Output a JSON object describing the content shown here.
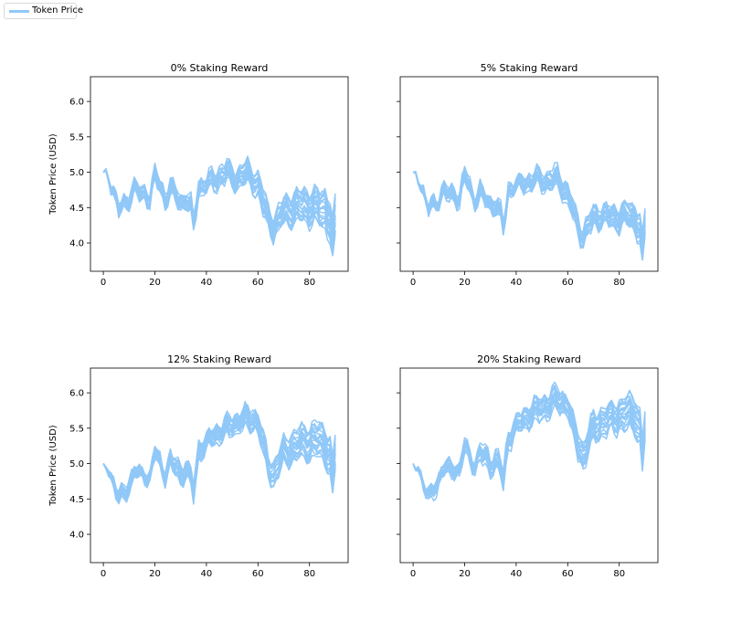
{
  "legend": {
    "label": "Token Price",
    "color": "#90c8f8"
  },
  "chart_data": [
    {
      "type": "line",
      "title": "0% Staking Reward",
      "ylabel": "Token Price (USD)",
      "xlabel": "",
      "xlim": [
        -5,
        95
      ],
      "ylim": [
        3.6,
        6.35
      ],
      "xticks": [
        0,
        20,
        40,
        60,
        80
      ],
      "yticks": [
        4.0,
        4.5,
        5.0,
        5.5,
        6.0
      ],
      "ytick_labels": [
        "4.0",
        "4.5",
        "5.0",
        "5.5",
        "6.0"
      ],
      "show_ytick_labels": true,
      "series_count": 20,
      "steps": 91,
      "mean_anchors": [
        [
          0,
          5.0
        ],
        [
          2,
          4.95
        ],
        [
          4,
          4.72
        ],
        [
          6,
          4.45
        ],
        [
          8,
          4.55
        ],
        [
          10,
          4.62
        ],
        [
          12,
          4.75
        ],
        [
          14,
          4.68
        ],
        [
          16,
          4.72
        ],
        [
          18,
          4.62
        ],
        [
          20,
          4.95
        ],
        [
          22,
          4.82
        ],
        [
          24,
          4.62
        ],
        [
          26,
          4.75
        ],
        [
          28,
          4.68
        ],
        [
          30,
          4.58
        ],
        [
          32,
          4.62
        ],
        [
          34,
          4.48
        ],
        [
          35,
          4.25
        ],
        [
          37,
          4.78
        ],
        [
          40,
          4.82
        ],
        [
          44,
          4.92
        ],
        [
          48,
          5.0
        ],
        [
          52,
          4.9
        ],
        [
          56,
          4.98
        ],
        [
          60,
          4.82
        ],
        [
          62,
          4.55
        ],
        [
          64,
          4.35
        ],
        [
          66,
          4.2
        ],
        [
          68,
          4.3
        ],
        [
          70,
          4.45
        ],
        [
          74,
          4.5
        ],
        [
          78,
          4.55
        ],
        [
          82,
          4.5
        ],
        [
          86,
          4.48
        ],
        [
          88,
          4.32
        ],
        [
          89,
          4.0
        ],
        [
          90,
          4.3
        ]
      ],
      "spread_anchors": [
        [
          0,
          0.0
        ],
        [
          2,
          0.01
        ],
        [
          6,
          0.05
        ],
        [
          20,
          0.07
        ],
        [
          36,
          0.09
        ],
        [
          50,
          0.12
        ],
        [
          62,
          0.14
        ],
        [
          66,
          0.15
        ],
        [
          70,
          0.18
        ],
        [
          80,
          0.22
        ],
        [
          90,
          0.28
        ]
      ]
    },
    {
      "type": "line",
      "title": "5% Staking Reward",
      "ylabel": "",
      "xlabel": "",
      "xlim": [
        -5,
        95
      ],
      "ylim": [
        3.6,
        6.35
      ],
      "xticks": [
        0,
        20,
        40,
        60,
        80
      ],
      "yticks": [
        4.0,
        4.5,
        5.0,
        5.5,
        6.0
      ],
      "ytick_labels": [
        "4.0",
        "4.5",
        "5.0",
        "5.5",
        "6.0"
      ],
      "show_ytick_labels": false,
      "series_count": 20,
      "steps": 91,
      "mean_anchors": [
        [
          0,
          5.0
        ],
        [
          2,
          4.95
        ],
        [
          4,
          4.72
        ],
        [
          6,
          4.45
        ],
        [
          8,
          4.55
        ],
        [
          10,
          4.62
        ],
        [
          12,
          4.72
        ],
        [
          14,
          4.66
        ],
        [
          16,
          4.7
        ],
        [
          18,
          4.6
        ],
        [
          20,
          4.95
        ],
        [
          22,
          4.8
        ],
        [
          24,
          4.6
        ],
        [
          26,
          4.7
        ],
        [
          28,
          4.62
        ],
        [
          30,
          4.55
        ],
        [
          32,
          4.55
        ],
        [
          34,
          4.4
        ],
        [
          35,
          4.2
        ],
        [
          37,
          4.75
        ],
        [
          40,
          4.8
        ],
        [
          44,
          4.85
        ],
        [
          48,
          4.9
        ],
        [
          52,
          4.85
        ],
        [
          56,
          4.9
        ],
        [
          60,
          4.7
        ],
        [
          62,
          4.45
        ],
        [
          64,
          4.25
        ],
        [
          66,
          4.1
        ],
        [
          68,
          4.25
        ],
        [
          70,
          4.35
        ],
        [
          74,
          4.38
        ],
        [
          78,
          4.35
        ],
        [
          82,
          4.38
        ],
        [
          86,
          4.35
        ],
        [
          88,
          4.2
        ],
        [
          89,
          3.85
        ],
        [
          90,
          4.25
        ]
      ],
      "spread_anchors": [
        [
          0,
          0.0
        ],
        [
          2,
          0.01
        ],
        [
          6,
          0.05
        ],
        [
          20,
          0.06
        ],
        [
          36,
          0.08
        ],
        [
          50,
          0.1
        ],
        [
          62,
          0.11
        ],
        [
          66,
          0.12
        ],
        [
          70,
          0.13
        ],
        [
          80,
          0.14
        ],
        [
          90,
          0.18
        ]
      ]
    },
    {
      "type": "line",
      "title": "12% Staking Reward",
      "ylabel": "Token Price (USD)",
      "xlabel": "",
      "xlim": [
        -5,
        95
      ],
      "ylim": [
        3.6,
        6.35
      ],
      "xticks": [
        0,
        20,
        40,
        60,
        80
      ],
      "yticks": [
        4.0,
        4.5,
        5.0,
        5.5,
        6.0
      ],
      "ytick_labels": [
        "4.0",
        "4.5",
        "5.0",
        "5.5",
        "6.0"
      ],
      "show_ytick_labels": true,
      "series_count": 20,
      "steps": 91,
      "mean_anchors": [
        [
          0,
          5.0
        ],
        [
          2,
          4.95
        ],
        [
          4,
          4.72
        ],
        [
          6,
          4.5
        ],
        [
          8,
          4.6
        ],
        [
          10,
          4.72
        ],
        [
          12,
          4.88
        ],
        [
          14,
          4.82
        ],
        [
          16,
          4.86
        ],
        [
          18,
          4.78
        ],
        [
          20,
          5.15
        ],
        [
          22,
          5.0
        ],
        [
          24,
          4.85
        ],
        [
          26,
          5.0
        ],
        [
          28,
          4.95
        ],
        [
          30,
          4.85
        ],
        [
          32,
          4.92
        ],
        [
          34,
          4.8
        ],
        [
          35,
          4.6
        ],
        [
          37,
          5.2
        ],
        [
          40,
          5.3
        ],
        [
          44,
          5.42
        ],
        [
          48,
          5.5
        ],
        [
          52,
          5.6
        ],
        [
          56,
          5.65
        ],
        [
          60,
          5.58
        ],
        [
          62,
          5.25
        ],
        [
          64,
          5.0
        ],
        [
          66,
          4.85
        ],
        [
          68,
          5.0
        ],
        [
          70,
          5.15
        ],
        [
          74,
          5.22
        ],
        [
          78,
          5.3
        ],
        [
          82,
          5.32
        ],
        [
          86,
          5.3
        ],
        [
          88,
          5.1
        ],
        [
          89,
          4.75
        ],
        [
          90,
          5.15
        ]
      ],
      "spread_anchors": [
        [
          0,
          0.0
        ],
        [
          2,
          0.01
        ],
        [
          6,
          0.05
        ],
        [
          20,
          0.07
        ],
        [
          36,
          0.09
        ],
        [
          50,
          0.12
        ],
        [
          62,
          0.14
        ],
        [
          66,
          0.15
        ],
        [
          70,
          0.17
        ],
        [
          80,
          0.2
        ],
        [
          90,
          0.25
        ]
      ]
    },
    {
      "type": "line",
      "title": "20% Staking Reward",
      "ylabel": "",
      "xlabel": "",
      "xlim": [
        -5,
        95
      ],
      "ylim": [
        3.6,
        6.35
      ],
      "xticks": [
        0,
        20,
        40,
        60,
        80
      ],
      "yticks": [
        4.0,
        4.5,
        5.0,
        5.5,
        6.0
      ],
      "ytick_labels": [
        "4.0",
        "4.5",
        "5.0",
        "5.5",
        "6.0"
      ],
      "show_ytick_labels": false,
      "series_count": 20,
      "steps": 91,
      "mean_anchors": [
        [
          0,
          5.0
        ],
        [
          2,
          4.95
        ],
        [
          4,
          4.72
        ],
        [
          6,
          4.5
        ],
        [
          8,
          4.65
        ],
        [
          10,
          4.8
        ],
        [
          12,
          4.95
        ],
        [
          14,
          4.9
        ],
        [
          16,
          4.95
        ],
        [
          18,
          4.9
        ],
        [
          20,
          5.25
        ],
        [
          22,
          5.1
        ],
        [
          24,
          5.0
        ],
        [
          26,
          5.15
        ],
        [
          28,
          5.1
        ],
        [
          30,
          5.0
        ],
        [
          32,
          5.05
        ],
        [
          34,
          4.95
        ],
        [
          35,
          4.75
        ],
        [
          37,
          5.4
        ],
        [
          40,
          5.5
        ],
        [
          44,
          5.65
        ],
        [
          48,
          5.75
        ],
        [
          52,
          5.85
        ],
        [
          56,
          5.9
        ],
        [
          60,
          5.85
        ],
        [
          62,
          5.5
        ],
        [
          64,
          5.25
        ],
        [
          66,
          5.1
        ],
        [
          68,
          5.3
        ],
        [
          70,
          5.5
        ],
        [
          74,
          5.6
        ],
        [
          78,
          5.65
        ],
        [
          82,
          5.7
        ],
        [
          86,
          5.72
        ],
        [
          88,
          5.5
        ],
        [
          89,
          5.1
        ],
        [
          90,
          5.55
        ]
      ],
      "spread_anchors": [
        [
          0,
          0.0
        ],
        [
          2,
          0.01
        ],
        [
          6,
          0.05
        ],
        [
          20,
          0.08
        ],
        [
          36,
          0.11
        ],
        [
          50,
          0.14
        ],
        [
          62,
          0.16
        ],
        [
          66,
          0.17
        ],
        [
          70,
          0.18
        ],
        [
          80,
          0.2
        ],
        [
          90,
          0.24
        ]
      ]
    }
  ]
}
